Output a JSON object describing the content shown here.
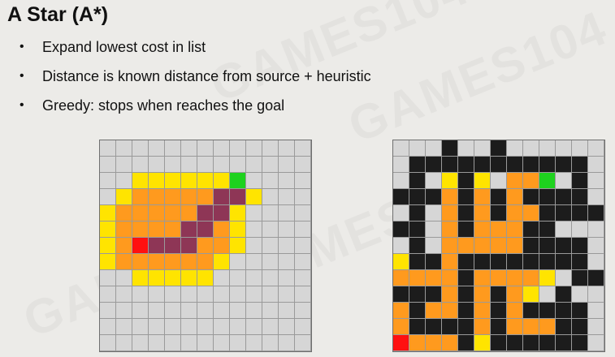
{
  "slide": {
    "title": "A Star (A*)",
    "bullets": [
      "Expand lowest cost in list",
      "Distance is known distance from source + heuristic",
      "Greedy: stops when reaches the goal"
    ],
    "watermark": "GAMES104"
  },
  "colors": {
    "empty": "#d6d6d6",
    "wall": "#1c1c1c",
    "frontier": "#ffe400",
    "explored": "#ff9a1e",
    "path": "#8e3656",
    "start": "#ff1010",
    "goal": "#1ed21e"
  },
  "grids": {
    "left": [
      ".............",
      ".............",
      "..YYYYYYG....",
      ".YOOOOOPPY...",
      "YOOOOOPPY....",
      "YOOOOPPOY....",
      "YOSPPPOOY....",
      "YOOOOOOY.....",
      "..YYYYY......",
      ".............",
      ".............",
      ".............",
      "............."
    ],
    "right": [
      "...W..W......",
      ".WWWWWWWWWWW.",
      ".W.YWY.OOG.W.",
      "WWWOWOWOWWWW.",
      ".W.OWOWOOWWWW",
      "WW.OWOOOWW...",
      ".W.OOOOOWWWW.",
      "YWWOWWWWWWWW.",
      "OOOOWOOOOY.WW",
      "WWWOWOWOY.W..",
      "OWOOWOWOWWWW.",
      "OWWWWOWOOOWW.",
      "SOOOWYWWWWWW."
    ]
  }
}
